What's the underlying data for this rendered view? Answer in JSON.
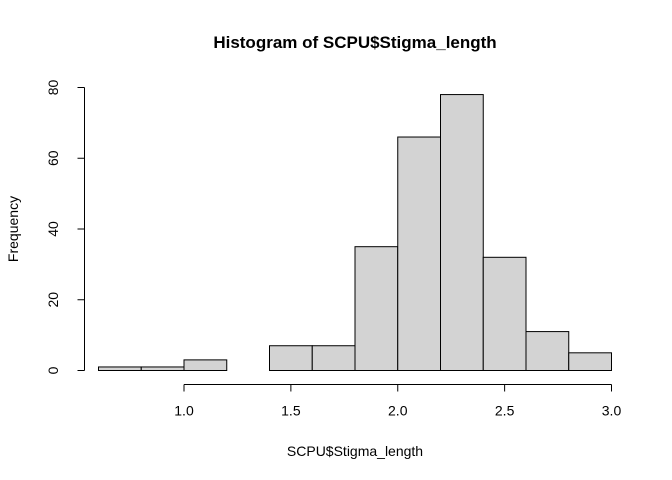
{
  "chart_data": {
    "type": "bar",
    "title": "Histogram of SCPU$Stigma_length",
    "xlabel": "SCPU$Stigma_length",
    "ylabel": "Frequency",
    "bins": [
      {
        "start": 0.6,
        "end": 0.8,
        "count": 1
      },
      {
        "start": 0.8,
        "end": 1.0,
        "count": 1
      },
      {
        "start": 1.0,
        "end": 1.2,
        "count": 3
      },
      {
        "start": 1.2,
        "end": 1.4,
        "count": 0
      },
      {
        "start": 1.4,
        "end": 1.6,
        "count": 7
      },
      {
        "start": 1.6,
        "end": 1.8,
        "count": 7
      },
      {
        "start": 1.8,
        "end": 2.0,
        "count": 35
      },
      {
        "start": 2.0,
        "end": 2.2,
        "count": 66
      },
      {
        "start": 2.2,
        "end": 2.4,
        "count": 78
      },
      {
        "start": 2.4,
        "end": 2.6,
        "count": 32
      },
      {
        "start": 2.6,
        "end": 2.8,
        "count": 11
      },
      {
        "start": 2.8,
        "end": 3.0,
        "count": 5
      }
    ],
    "xlim": [
      0.6,
      3.0
    ],
    "ylim": [
      0,
      80
    ],
    "x_ticks": [
      "1.0",
      "1.5",
      "2.0",
      "2.5",
      "3.0"
    ],
    "y_ticks": [
      "0",
      "20",
      "40",
      "60",
      "80"
    ],
    "grid": false,
    "colors": {
      "bar_fill": "#d3d3d3",
      "bar_stroke": "#000000"
    }
  }
}
